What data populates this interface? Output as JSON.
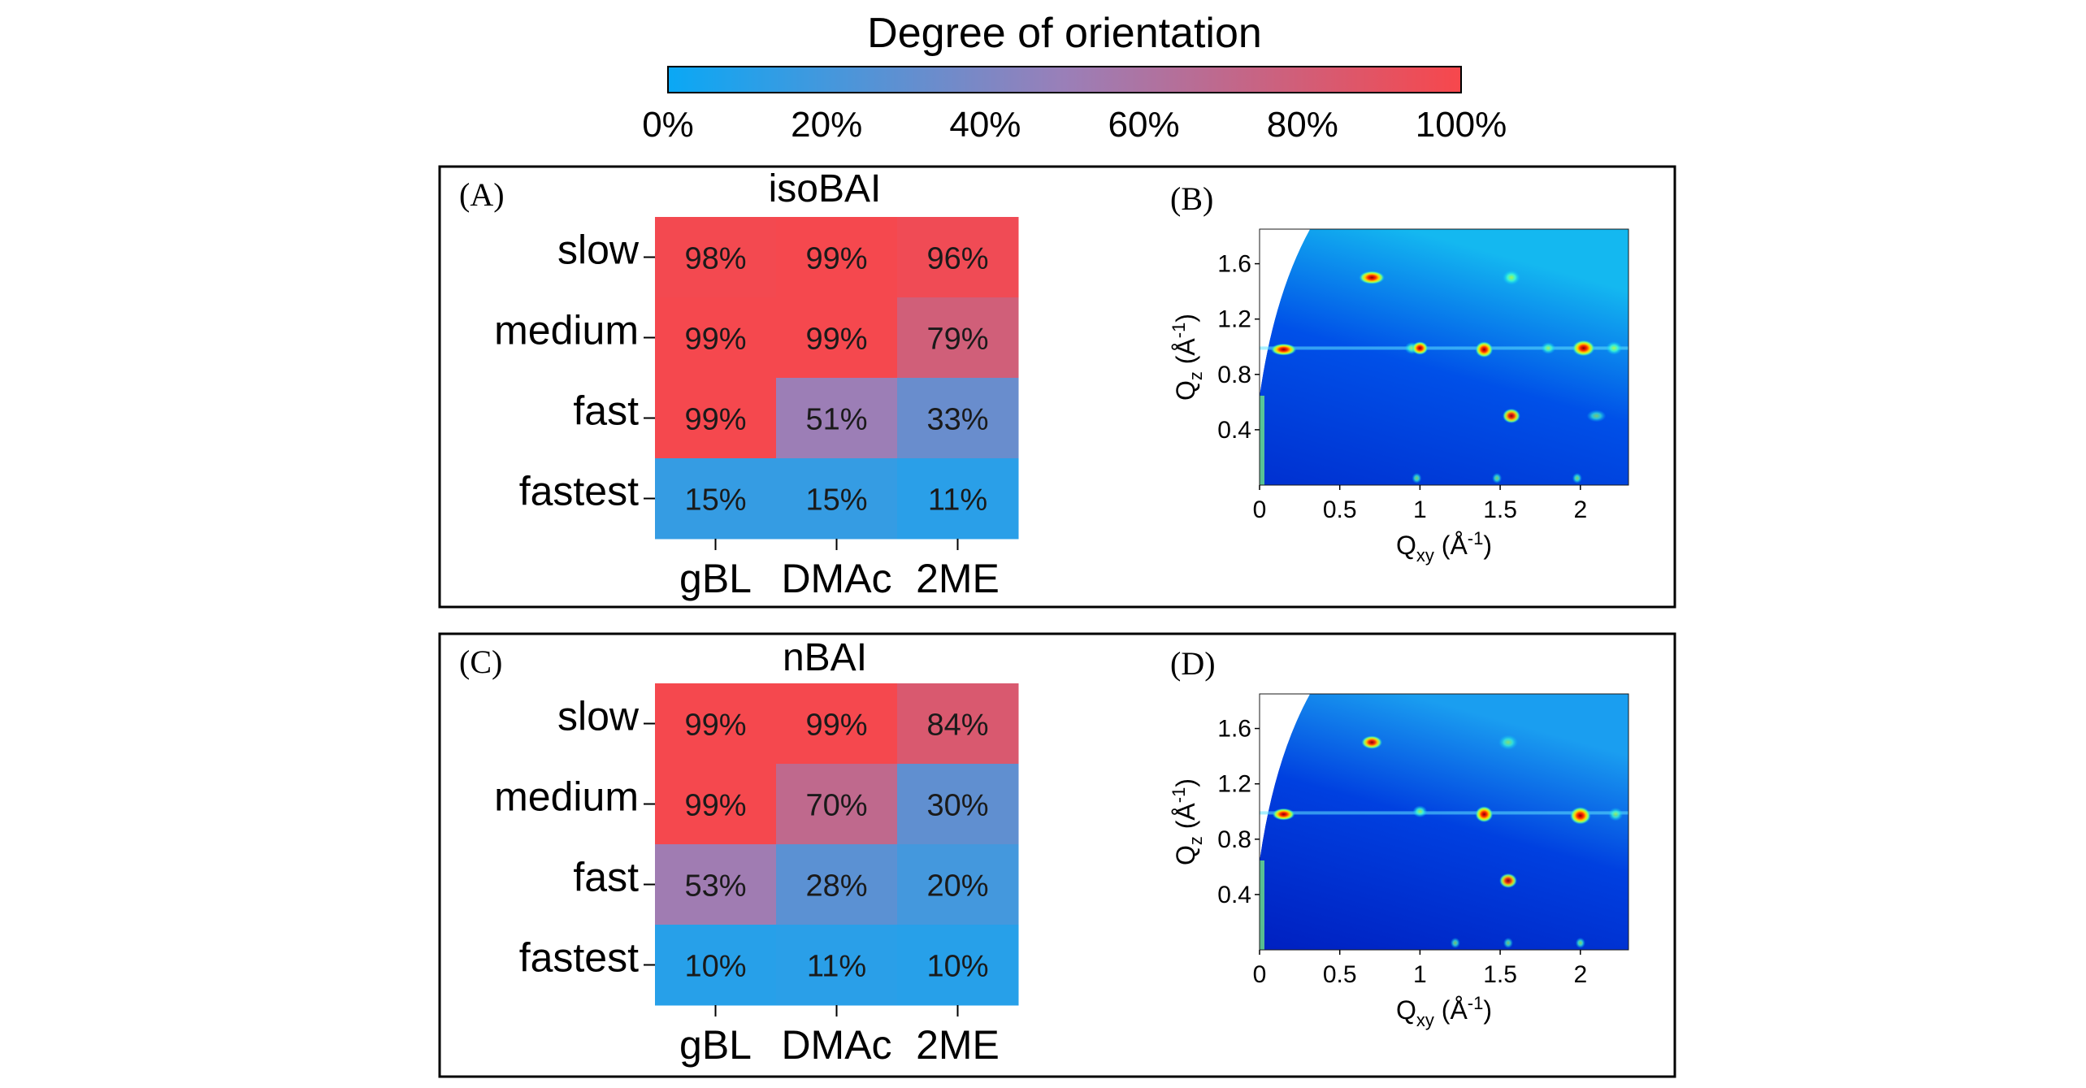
{
  "colorbar": {
    "title": "Degree of orientation",
    "ticks": [
      "0%",
      "20%",
      "40%",
      "60%",
      "80%",
      "100%"
    ],
    "colors": {
      "low": "#0aa8f5",
      "mid": "#9a7fb8",
      "high": "#f7474c"
    }
  },
  "chart_data": [
    {
      "type": "heatmap",
      "panel": "(A)",
      "title": "isoBAI",
      "rows": [
        "slow",
        "medium",
        "fast",
        "fastest"
      ],
      "columns": [
        "gBL",
        "DMAc",
        "2ME"
      ],
      "values": [
        [
          98,
          99,
          96
        ],
        [
          99,
          99,
          79
        ],
        [
          99,
          51,
          33
        ],
        [
          15,
          15,
          11
        ]
      ],
      "labels": [
        [
          "98%",
          "99%",
          "96%"
        ],
        [
          "99%",
          "99%",
          "79%"
        ],
        [
          "99%",
          "51%",
          "33%"
        ],
        [
          "15%",
          "15%",
          "11%"
        ]
      ],
      "range": [
        0,
        100
      ]
    },
    {
      "type": "heatmap",
      "panel": "(C)",
      "title": "nBAI",
      "rows": [
        "slow",
        "medium",
        "fast",
        "fastest"
      ],
      "columns": [
        "gBL",
        "DMAc",
        "2ME"
      ],
      "values": [
        [
          99,
          99,
          84
        ],
        [
          99,
          70,
          30
        ],
        [
          53,
          28,
          20
        ],
        [
          10,
          11,
          10
        ]
      ],
      "labels": [
        [
          "99%",
          "99%",
          "84%"
        ],
        [
          "99%",
          "70%",
          "30%"
        ],
        [
          "53%",
          "28%",
          "20%"
        ],
        [
          "10%",
          "11%",
          "10%"
        ]
      ],
      "range": [
        0,
        100
      ]
    },
    {
      "type": "scatter",
      "panel": "(B)",
      "description_kind": "GIWAXS detector map",
      "x_label_main": "Q",
      "x_label_sub": "xy",
      "x_label_unit_pre": " (Å",
      "x_label_unit_sup": "-1",
      "x_label_unit_post": ")",
      "y_label_main": "Q",
      "y_label_sub": "z",
      "y_label_unit_pre": " (Å",
      "y_label_unit_sup": "-1",
      "y_label_unit_post": ")",
      "xlim": [
        0,
        2.3
      ],
      "ylim": [
        0,
        1.85
      ],
      "x_ticks": [
        0,
        0.5,
        1,
        1.5,
        2
      ],
      "x_tick_labels": [
        "0",
        "0.5",
        "1",
        "1.5",
        "2"
      ],
      "y_ticks": [
        0.4,
        0.8,
        1.2,
        1.6
      ],
      "y_tick_labels": [
        "0.4",
        "0.8",
        "1.2",
        "1.6"
      ],
      "spots": [
        {
          "qxy": 0.15,
          "qz": 0.98,
          "w": 0.12,
          "h": 0.04,
          "i": 1.0
        },
        {
          "qxy": 0.7,
          "qz": 1.5,
          "w": 0.12,
          "h": 0.05,
          "i": 1.0
        },
        {
          "qxy": 1.57,
          "qz": 1.5,
          "w": 0.07,
          "h": 0.06,
          "i": 0.7
        },
        {
          "qxy": 0.95,
          "qz": 0.99,
          "w": 0.05,
          "h": 0.04,
          "i": 0.6
        },
        {
          "qxy": 1.0,
          "qz": 0.99,
          "w": 0.06,
          "h": 0.05,
          "i": 0.9
        },
        {
          "qxy": 1.4,
          "qz": 0.98,
          "w": 0.07,
          "h": 0.07,
          "i": 1.0
        },
        {
          "qxy": 1.8,
          "qz": 0.99,
          "w": 0.05,
          "h": 0.04,
          "i": 0.6
        },
        {
          "qxy": 2.02,
          "qz": 0.99,
          "w": 0.1,
          "h": 0.07,
          "i": 1.0
        },
        {
          "qxy": 2.21,
          "qz": 0.99,
          "w": 0.06,
          "h": 0.05,
          "i": 0.7
        },
        {
          "qxy": 1.57,
          "qz": 0.5,
          "w": 0.07,
          "h": 0.06,
          "i": 0.8
        },
        {
          "qxy": 2.1,
          "qz": 0.5,
          "w": 0.08,
          "h": 0.04,
          "i": 0.35
        },
        {
          "qxy": 0.98,
          "qz": 0.05,
          "w": 0.02,
          "h": 0.03,
          "i": 0.45
        },
        {
          "qxy": 1.48,
          "qz": 0.05,
          "w": 0.02,
          "h": 0.03,
          "i": 0.45
        },
        {
          "qxy": 1.98,
          "qz": 0.05,
          "w": 0.02,
          "h": 0.03,
          "i": 0.5
        }
      ]
    },
    {
      "type": "scatter",
      "panel": "(D)",
      "description_kind": "GIWAXS detector map",
      "x_label_main": "Q",
      "x_label_sub": "xy",
      "x_label_unit_pre": " (Å",
      "x_label_unit_sup": "-1",
      "x_label_unit_post": ")",
      "y_label_main": "Q",
      "y_label_sub": "z",
      "y_label_unit_pre": " (Å",
      "y_label_unit_sup": "-1",
      "y_label_unit_post": ")",
      "xlim": [
        0,
        2.3
      ],
      "ylim": [
        0,
        1.85
      ],
      "x_ticks": [
        0,
        0.5,
        1,
        1.5,
        2
      ],
      "x_tick_labels": [
        "0",
        "0.5",
        "1",
        "1.5",
        "2"
      ],
      "y_ticks": [
        0.4,
        0.8,
        1.2,
        1.6
      ],
      "y_tick_labels": [
        "0.4",
        "0.8",
        "1.2",
        "1.6"
      ],
      "spots": [
        {
          "qxy": 0.15,
          "qz": 0.98,
          "w": 0.1,
          "h": 0.04,
          "i": 1.0
        },
        {
          "qxy": 0.7,
          "qz": 1.5,
          "w": 0.09,
          "h": 0.05,
          "i": 0.85
        },
        {
          "qxy": 1.55,
          "qz": 1.5,
          "w": 0.08,
          "h": 0.06,
          "i": 0.4
        },
        {
          "qxy": 1.0,
          "qz": 1.0,
          "w": 0.05,
          "h": 0.04,
          "i": 0.65
        },
        {
          "qxy": 1.4,
          "qz": 0.98,
          "w": 0.07,
          "h": 0.07,
          "i": 1.0
        },
        {
          "qxy": 2.0,
          "qz": 0.97,
          "w": 0.09,
          "h": 0.08,
          "i": 1.0
        },
        {
          "qxy": 2.22,
          "qz": 0.98,
          "w": 0.05,
          "h": 0.05,
          "i": 0.5
        },
        {
          "qxy": 1.55,
          "qz": 0.5,
          "w": 0.07,
          "h": 0.06,
          "i": 0.75
        },
        {
          "qxy": 1.22,
          "qz": 0.05,
          "w": 0.02,
          "h": 0.03,
          "i": 0.4
        },
        {
          "qxy": 1.55,
          "qz": 0.05,
          "w": 0.02,
          "h": 0.03,
          "i": 0.4
        },
        {
          "qxy": 2.0,
          "qz": 0.05,
          "w": 0.02,
          "h": 0.03,
          "i": 0.5
        }
      ]
    }
  ]
}
